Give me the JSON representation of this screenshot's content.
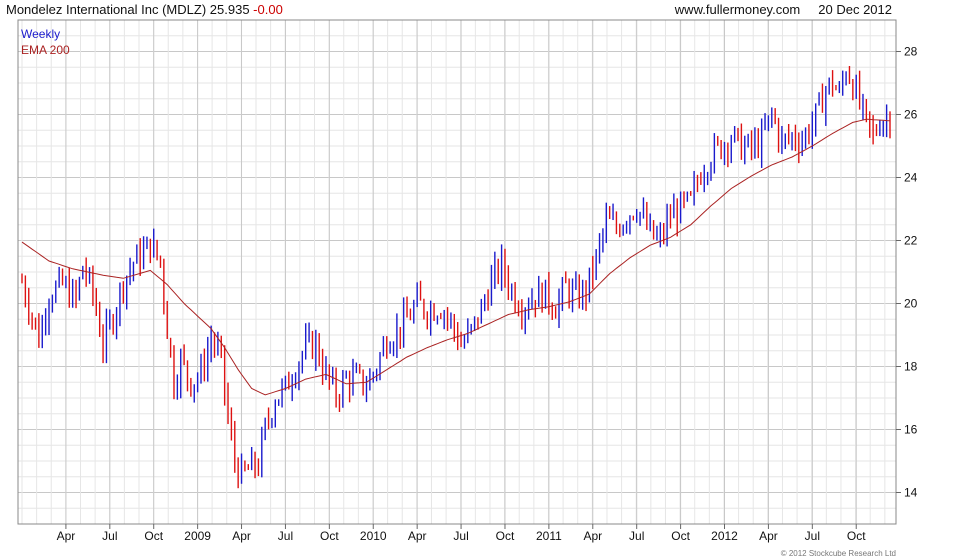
{
  "header": {
    "title": "Mondelez International Inc (MDLZ)",
    "price": "25.935",
    "change": "-0.00",
    "website": "www.fullermoney.com",
    "date": "20 Dec 2012"
  },
  "footer": {
    "copyright": "© 2012 Stockcube Research Ltd"
  },
  "colors": {
    "up": "#1a1acc",
    "down": "#dd1111",
    "ema": "#aa2222",
    "grid": "#d4d4d4",
    "frame": "#888888"
  },
  "chart_data": {
    "type": "candlestick",
    "frequency": "Weekly",
    "legend": [
      "Weekly",
      "EMA 200"
    ],
    "y_axis": {
      "side": "right",
      "min": 13,
      "max": 29,
      "ticks": [
        14,
        16,
        18,
        20,
        22,
        24,
        26,
        28
      ]
    },
    "x_axis": {
      "labels": [
        "Apr",
        "Jul",
        "Oct",
        "2009",
        "Apr",
        "Jul",
        "Oct",
        "2010",
        "Apr",
        "Jul",
        "Oct",
        "2011",
        "Apr",
        "Jul",
        "Oct",
        "2012",
        "Apr",
        "Jul",
        "Oct"
      ],
      "label_weeks": [
        13,
        26,
        39,
        52,
        65,
        78,
        91,
        104,
        117,
        130,
        143,
        156,
        169,
        182,
        195,
        208,
        221,
        234,
        247
      ]
    },
    "grid": true,
    "weeks": 258,
    "close_waypoints": [
      [
        0,
        20.7
      ],
      [
        3,
        19.6
      ],
      [
        5,
        18.9
      ],
      [
        8,
        20.3
      ],
      [
        12,
        20.6
      ],
      [
        16,
        20.1
      ],
      [
        18,
        21.2
      ],
      [
        21,
        20.3
      ],
      [
        24,
        18.7
      ],
      [
        27,
        19.6
      ],
      [
        30,
        20.7
      ],
      [
        33,
        21.3
      ],
      [
        36,
        21.6
      ],
      [
        38,
        21.9
      ],
      [
        41,
        21.3
      ],
      [
        43,
        19.2
      ],
      [
        45,
        17.5
      ],
      [
        47,
        18.2
      ],
      [
        50,
        17.5
      ],
      [
        53,
        17.8
      ],
      [
        56,
        18.9
      ],
      [
        59,
        18.2
      ],
      [
        61,
        16.3
      ],
      [
        63,
        15.0
      ],
      [
        65,
        14.5
      ],
      [
        68,
        14.8
      ],
      [
        70,
        14.9
      ],
      [
        72,
        16.0
      ],
      [
        75,
        17.0
      ],
      [
        78,
        17.3
      ],
      [
        81,
        18.0
      ],
      [
        84,
        18.6
      ],
      [
        87,
        18.7
      ],
      [
        89,
        18.0
      ],
      [
        91,
        17.5
      ],
      [
        93,
        17.1
      ],
      [
        96,
        17.6
      ],
      [
        99,
        17.6
      ],
      [
        102,
        17.4
      ],
      [
        105,
        18.0
      ],
      [
        108,
        18.9
      ],
      [
        111,
        19.1
      ],
      [
        114,
        19.5
      ],
      [
        117,
        20.0
      ],
      [
        120,
        19.8
      ],
      [
        124,
        19.9
      ],
      [
        127,
        19.4
      ],
      [
        130,
        18.7
      ],
      [
        133,
        19.1
      ],
      [
        136,
        19.8
      ],
      [
        139,
        20.7
      ],
      [
        142,
        21.2
      ],
      [
        145,
        20.4
      ],
      [
        148,
        19.9
      ],
      [
        151,
        20.2
      ],
      [
        155,
        20.3
      ],
      [
        158,
        19.9
      ],
      [
        161,
        20.5
      ],
      [
        164,
        20.2
      ],
      [
        167,
        20.4
      ],
      [
        170,
        21.4
      ],
      [
        173,
        22.6
      ],
      [
        176,
        22.4
      ],
      [
        179,
        22.8
      ],
      [
        182,
        23.1
      ],
      [
        185,
        22.4
      ],
      [
        187,
        22.1
      ],
      [
        189,
        22.0
      ],
      [
        192,
        22.8
      ],
      [
        195,
        23.0
      ],
      [
        198,
        23.2
      ],
      [
        201,
        24.2
      ],
      [
        204,
        24.7
      ],
      [
        207,
        25.0
      ],
      [
        210,
        25.3
      ],
      [
        213,
        25.0
      ],
      [
        216,
        24.9
      ],
      [
        219,
        25.2
      ],
      [
        222,
        26.0
      ],
      [
        225,
        25.1
      ],
      [
        228,
        25.3
      ],
      [
        231,
        25.2
      ],
      [
        234,
        25.7
      ],
      [
        236,
        26.2
      ],
      [
        238,
        26.8
      ],
      [
        240,
        27.0
      ],
      [
        242,
        26.6
      ],
      [
        244,
        27.5
      ],
      [
        246,
        27.0
      ],
      [
        248,
        26.3
      ],
      [
        250,
        25.7
      ],
      [
        252,
        25.3
      ],
      [
        254,
        25.8
      ],
      [
        256,
        25.9
      ],
      [
        257,
        25.93
      ]
    ],
    "ema200_waypoints": [
      [
        0,
        21.95
      ],
      [
        8,
        21.35
      ],
      [
        15,
        21.1
      ],
      [
        24,
        20.9
      ],
      [
        30,
        20.8
      ],
      [
        38,
        21.05
      ],
      [
        43,
        20.6
      ],
      [
        48,
        20.0
      ],
      [
        52,
        19.6
      ],
      [
        56,
        19.2
      ],
      [
        60,
        18.6
      ],
      [
        64,
        17.9
      ],
      [
        68,
        17.3
      ],
      [
        72,
        17.1
      ],
      [
        78,
        17.3
      ],
      [
        84,
        17.6
      ],
      [
        90,
        17.75
      ],
      [
        96,
        17.45
      ],
      [
        102,
        17.5
      ],
      [
        108,
        17.9
      ],
      [
        114,
        18.3
      ],
      [
        120,
        18.6
      ],
      [
        126,
        18.85
      ],
      [
        132,
        19.05
      ],
      [
        138,
        19.35
      ],
      [
        144,
        19.65
      ],
      [
        150,
        19.8
      ],
      [
        156,
        19.9
      ],
      [
        162,
        20.05
      ],
      [
        168,
        20.3
      ],
      [
        174,
        20.95
      ],
      [
        180,
        21.45
      ],
      [
        186,
        21.85
      ],
      [
        192,
        22.1
      ],
      [
        198,
        22.5
      ],
      [
        204,
        23.1
      ],
      [
        210,
        23.65
      ],
      [
        216,
        24.05
      ],
      [
        222,
        24.4
      ],
      [
        228,
        24.65
      ],
      [
        234,
        25.0
      ],
      [
        240,
        25.4
      ],
      [
        246,
        25.75
      ],
      [
        250,
        25.85
      ],
      [
        257,
        25.8
      ]
    ]
  }
}
